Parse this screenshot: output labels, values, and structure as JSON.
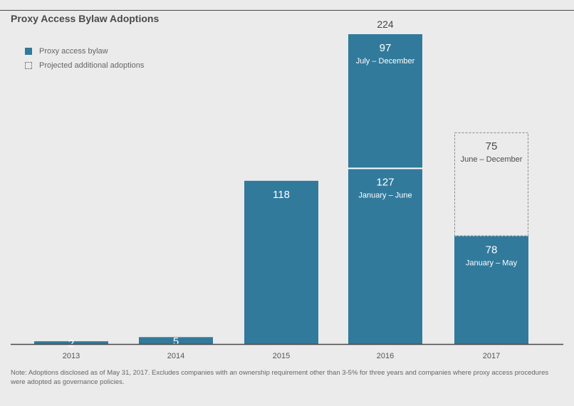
{
  "chart_data": {
    "type": "bar",
    "title": "Proxy Access Bylaw Adoptions",
    "categories": [
      "2013",
      "2014",
      "2015",
      "2016",
      "2017"
    ],
    "series": [
      {
        "name": "Proxy access bylaw",
        "values": [
          2,
          5,
          118,
          127,
          78
        ],
        "segment_labels": [
          "",
          "",
          "",
          "January – June",
          "January – May"
        ]
      },
      {
        "name": "Proxy access bylaw",
        "values": [
          0,
          0,
          0,
          97,
          0
        ],
        "segment_labels": [
          "",
          "",
          "",
          "July – December",
          ""
        ]
      },
      {
        "name": "Projected additional adoptions",
        "values": [
          0,
          0,
          0,
          0,
          75
        ],
        "segment_labels": [
          "",
          "",
          "",
          "",
          "June – December"
        ]
      }
    ],
    "totals": [
      {
        "category": "2016",
        "value": 224
      }
    ],
    "ylim": [
      0,
      224
    ],
    "legend": [
      {
        "label": "Proxy access bylaw",
        "style": "solid"
      },
      {
        "label": "Projected additional adoptions",
        "style": "dashed"
      }
    ],
    "colors": {
      "bar": "#317a9c",
      "bar_text": "#ffffff",
      "projected_text": "#4a4a4a",
      "axis": "#4a4a4a"
    }
  },
  "footnote": "Note: Adoptions disclosed as of May 31, 2017. Excludes companies with an ownership requirement other than 3-5% for three years and companies where proxy access procedures were adopted as governance policies."
}
